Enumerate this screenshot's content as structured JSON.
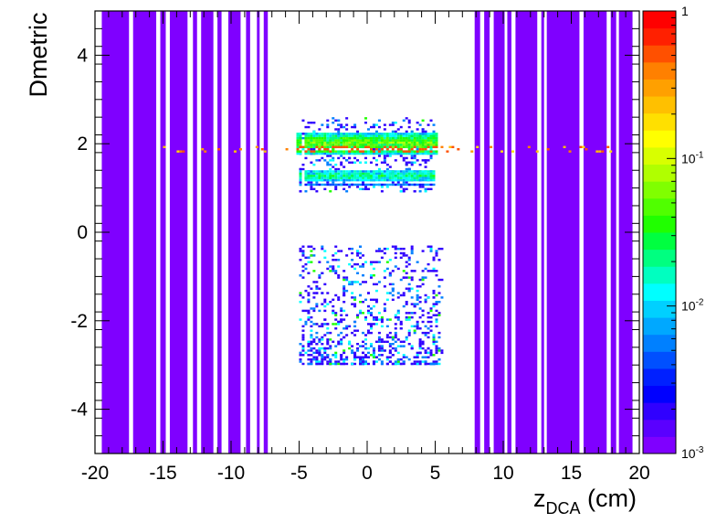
{
  "chart_data": {
    "type": "heatmap",
    "title": "",
    "xlabel": {
      "main": "z",
      "subscript": "DCA",
      "suffix": " (cm)"
    },
    "ylabel": "Dmetric",
    "xlim": [
      -20,
      20
    ],
    "ylim": [
      -5,
      5
    ],
    "xticks": [
      "-20",
      "-15",
      "-10",
      "-5",
      "0",
      "5",
      "10",
      "15",
      "20"
    ],
    "yticks": [
      "-4",
      "-2",
      "0",
      "2",
      "4"
    ],
    "color_scale": "log",
    "zlim": [
      0.001,
      1
    ],
    "colorbar_labels": [
      {
        "base": "1",
        "exp": ""
      },
      {
        "base": "10",
        "exp": "-1"
      },
      {
        "base": "10",
        "exp": "-2"
      },
      {
        "base": "10",
        "exp": "-3"
      }
    ],
    "palette": [
      "#7f00ff",
      "#5a00ff",
      "#3000ff",
      "#0000ff",
      "#0020ff",
      "#0050ff",
      "#0080ff",
      "#00a8ff",
      "#00d0ff",
      "#00ffff",
      "#00ffc0",
      "#00ff80",
      "#00ff40",
      "#20ff00",
      "#50ff00",
      "#80ff00",
      "#b0ff00",
      "#d8ff00",
      "#ffff00",
      "#ffe000",
      "#ffc000",
      "#ffa000",
      "#ff8000",
      "#ff5000",
      "#ff2000",
      "#ff0000"
    ],
    "features": [
      {
        "name": "filled columns",
        "x_ranges": [
          [
            -19.5,
            -17.5
          ],
          [
            -17.2,
            -15.5
          ],
          [
            -15.2,
            -14.8
          ],
          [
            -14.5,
            -13.2
          ],
          [
            -12.8,
            -12.5
          ],
          [
            -12.2,
            -11.3
          ],
          [
            -11.0,
            -10.7
          ],
          [
            -10.2,
            -9.3
          ],
          [
            -8.9,
            -8.6
          ],
          [
            -8.1,
            -7.9
          ],
          [
            -7.6,
            -7.3
          ],
          [
            7.9,
            8.3
          ],
          [
            8.6,
            9.0
          ],
          [
            9.3,
            10.1
          ],
          [
            10.3,
            10.6
          ],
          [
            10.9,
            12.5
          ],
          [
            12.8,
            13.0
          ],
          [
            13.2,
            15.6
          ],
          [
            15.9,
            17.6
          ],
          [
            17.9,
            18.3
          ],
          [
            18.5,
            19.5
          ]
        ],
        "y_range": [
          -5,
          5
        ],
        "value": 0.001
      },
      {
        "name": "dense band upper",
        "x_range": [
          -5.2,
          5.2
        ],
        "y_range": [
          1.75,
          2.25
        ],
        "value": 0.05
      },
      {
        "name": "dense band lower",
        "x_range": [
          -5.0,
          5.0
        ],
        "y_range": [
          1.1,
          1.4
        ],
        "value": 0.02
      },
      {
        "name": "sparse cluster upper",
        "x_range": [
          -5.0,
          5.0
        ],
        "y_range": [
          0.9,
          2.6
        ],
        "value": 0.002
      },
      {
        "name": "sparse cluster lower",
        "x_range": [
          -5.0,
          5.5
        ],
        "y_range": [
          -3.0,
          -0.3
        ],
        "value": 0.002
      },
      {
        "name": "hot stripe",
        "x_range": [
          -18.0,
          18.0
        ],
        "y_range": [
          1.8,
          1.95
        ],
        "value": 0.5
      }
    ]
  }
}
